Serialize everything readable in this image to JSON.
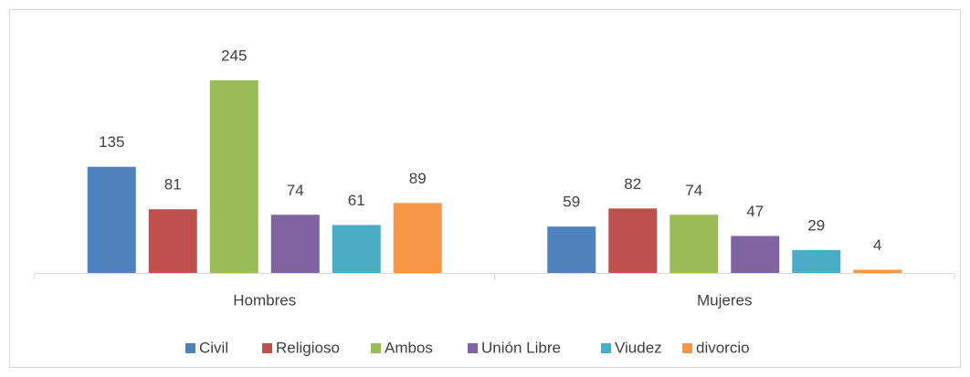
{
  "chart_data": {
    "type": "bar",
    "categories": [
      "Hombres",
      "Mujeres"
    ],
    "series": [
      {
        "name": "Civil",
        "color": "#4f81bd",
        "values": [
          135,
          59
        ]
      },
      {
        "name": "Religioso",
        "color": "#c0504d",
        "values": [
          81,
          82
        ]
      },
      {
        "name": "Ambos",
        "color": "#9bbb59",
        "values": [
          245,
          74
        ]
      },
      {
        "name": "Unión Libre",
        "color": "#8064a2",
        "values": [
          74,
          47
        ]
      },
      {
        "name": "Viudez",
        "color": "#4bacc6",
        "values": [
          61,
          29
        ]
      },
      {
        "name": "divorcio",
        "color": "#f79646",
        "values": [
          89,
          4
        ]
      }
    ],
    "legend": "bottom"
  }
}
